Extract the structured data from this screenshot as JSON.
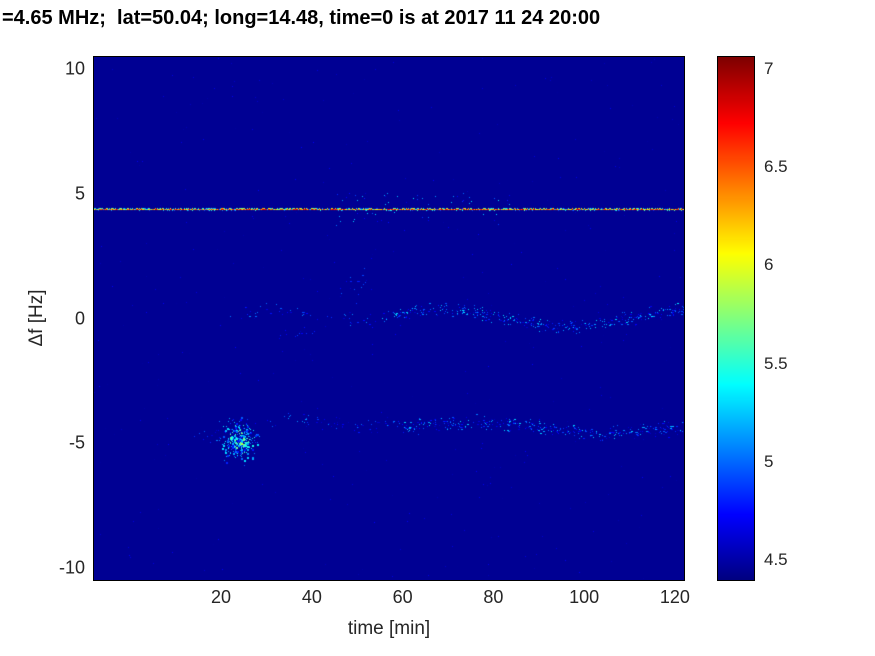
{
  "chart_data": {
    "type": "heatmap",
    "title": "=4.65 MHz;  lat=50.04; long=14.48, time=0 is at 2017 11 24 20:00",
    "xlabel": "time [min]",
    "ylabel": "Δf [Hz]",
    "xlim": [
      -8,
      122
    ],
    "ylim": [
      -10.5,
      10.5
    ],
    "xticks": [
      20,
      40,
      60,
      80,
      100,
      120
    ],
    "yticks": [
      -10,
      -5,
      0,
      5,
      10
    ],
    "colormap": "jet",
    "value_range": [
      4.4,
      7.06
    ],
    "colorbar_ticks": [
      4.5,
      5,
      5.5,
      6,
      6.5,
      7
    ],
    "background_value": 4.45,
    "background_color": "#000093",
    "grid": false,
    "legend": "none",
    "features": [
      {
        "type": "noise",
        "count": 380,
        "value_min": 4.45,
        "value_max": 4.72
      },
      {
        "type": "scatter_band",
        "x_start": 22,
        "x_end": 55,
        "y_center": 0.1,
        "y_spread": 0.3,
        "wiggle_amp": 0.2,
        "wiggle_period": 40,
        "density_per_min": 1.6,
        "value_min": 4.55,
        "value_max": 5.1
      },
      {
        "type": "scatter_band",
        "x_start": 55,
        "x_end": 122,
        "y_center": 0.0,
        "y_spread": 0.25,
        "wiggle_amp": 0.35,
        "wiggle_period": 55,
        "density_per_min": 6,
        "value_min": 4.55,
        "value_max": 5.35
      },
      {
        "type": "scatter_band",
        "x_start": 46,
        "x_end": 53,
        "y_center": 1.5,
        "y_spread": 0.8,
        "wiggle_amp": 0,
        "wiggle_period": 10,
        "density_per_min": 2.5,
        "value_min": 4.55,
        "value_max": 5.0
      },
      {
        "type": "scatter_band",
        "x_start": 30,
        "x_end": 42,
        "y_center": -0.6,
        "y_spread": 0.25,
        "wiggle_amp": 0,
        "wiggle_period": 10,
        "density_per_min": 1.2,
        "value_min": 4.55,
        "value_max": 4.95
      },
      {
        "type": "scatter_band",
        "x_start": 30,
        "x_end": 60,
        "y_center": -4.2,
        "y_spread": 0.3,
        "wiggle_amp": 0.15,
        "wiggle_period": 30,
        "density_per_min": 2.2,
        "value_min": 4.55,
        "value_max": 5.15
      },
      {
        "type": "scatter_band",
        "x_start": 60,
        "x_end": 122,
        "y_center": -4.4,
        "y_spread": 0.28,
        "wiggle_amp": 0.2,
        "wiggle_period": 60,
        "density_per_min": 6,
        "value_min": 4.55,
        "value_max": 5.3
      },
      {
        "type": "scatter_band",
        "x_start": 14,
        "x_end": 21,
        "y_center": -4.7,
        "y_spread": 0.25,
        "wiggle_amp": 0,
        "wiggle_period": 10,
        "density_per_min": 2.2,
        "value_min": 4.6,
        "value_max": 5.2
      },
      {
        "type": "blob",
        "x_center": 24,
        "y_center": -4.9,
        "x_radius": 4.5,
        "y_radius": 0.9,
        "count": 320,
        "value_min": 4.7,
        "value_max": 6.0
      },
      {
        "type": "hline_speckled",
        "y": 4.4,
        "x_start": -8,
        "x_end": 122,
        "value_min": 5.8,
        "value_max": 6.85,
        "halo": {
          "x_start": 45,
          "x_end": 85,
          "spread_hz": 0.5,
          "density_per_min": 1.3,
          "value_min": 4.6,
          "value_max": 5.4
        }
      }
    ]
  }
}
